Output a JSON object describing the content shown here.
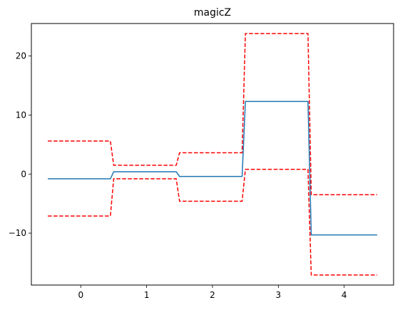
{
  "chart_data": {
    "type": "line",
    "title": "magicZ",
    "xlabel": "",
    "ylabel": "",
    "xlim": [
      -0.75,
      4.75
    ],
    "ylim": [
      -18.8,
      25.5
    ],
    "xticks": [
      0,
      1,
      2,
      3,
      4
    ],
    "xtick_labels": [
      "0",
      "1",
      "2",
      "3",
      "4"
    ],
    "yticks": [
      -10,
      0,
      10,
      20
    ],
    "ytick_labels": [
      "−10",
      "0",
      "10",
      "20"
    ],
    "grid": false,
    "legend": "none",
    "series": [
      {
        "color": "#1f77b4",
        "style": "solid",
        "x": [
          -0.5,
          0.45,
          0.5,
          1.45,
          1.5,
          2.45,
          2.5,
          3.45,
          3.5,
          4.5
        ],
        "y": [
          -0.8,
          -0.8,
          0.4,
          0.4,
          -0.4,
          -0.4,
          12.3,
          12.3,
          -10.3,
          -10.3
        ]
      },
      {
        "color": "#ff0000",
        "style": "dashed",
        "x": [
          -0.5,
          0.45,
          0.5,
          1.45,
          1.5,
          2.45,
          2.5,
          3.45,
          3.5,
          4.5
        ],
        "y": [
          5.6,
          5.6,
          1.5,
          1.5,
          3.6,
          3.6,
          23.8,
          23.8,
          -3.5,
          -3.5
        ]
      },
      {
        "color": "#ff0000",
        "style": "dashed",
        "x": [
          -0.5,
          0.45,
          0.5,
          1.45,
          1.5,
          2.45,
          2.5,
          3.45,
          3.5,
          4.5
        ],
        "y": [
          -7.1,
          -7.1,
          -0.8,
          -0.8,
          -4.6,
          -4.6,
          0.8,
          0.8,
          -17.1,
          -17.1
        ]
      }
    ]
  }
}
